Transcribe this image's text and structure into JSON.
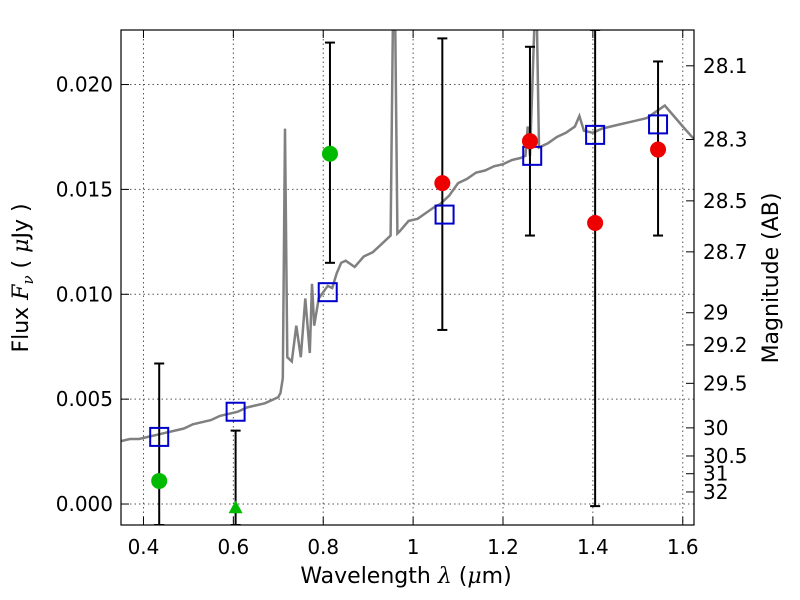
{
  "chart_data": {
    "type": "scatter",
    "title": "",
    "xlabel": "Wavelength  λ (μm)",
    "ylabel": "Flux  F_ν  ( μJy )",
    "y2label": "Magnitude (AB)",
    "xlabel_parts": {
      "pre": "Wavelength  ",
      "sym": "λ",
      "post": " (",
      "unit": "μ",
      "tail": "m)"
    },
    "ylabel_parts": {
      "pre": "Flux  ",
      "sym": "F",
      "sub": "ν",
      "post": "  ( ",
      "unit": "μ",
      "tail": "Jy )"
    },
    "xlim": [
      0.35,
      1.625
    ],
    "ylim": [
      -0.001,
      0.0226
    ],
    "grid": true,
    "x_ticks": [
      {
        "value": 0.4,
        "label": "0.4"
      },
      {
        "value": 0.6,
        "label": "0.6"
      },
      {
        "value": 0.8,
        "label": "0.8"
      },
      {
        "value": 1.0,
        "label": "1"
      },
      {
        "value": 1.2,
        "label": "1.2"
      },
      {
        "value": 1.4,
        "label": "1.4"
      },
      {
        "value": 1.6,
        "label": "1.6"
      }
    ],
    "y_ticks": [
      {
        "value": 0.0,
        "label": "0.000"
      },
      {
        "value": 0.005,
        "label": "0.005"
      },
      {
        "value": 0.01,
        "label": "0.010"
      },
      {
        "value": 0.015,
        "label": "0.015"
      },
      {
        "value": 0.02,
        "label": "0.020"
      }
    ],
    "y2_ticks": [
      {
        "value": 28.1,
        "label": "28.1"
      },
      {
        "value": 28.3,
        "label": "28.3"
      },
      {
        "value": 28.5,
        "label": "28.5"
      },
      {
        "value": 28.7,
        "label": "28.7"
      },
      {
        "value": 29,
        "label": "29"
      },
      {
        "value": 29.2,
        "label": "29.2"
      },
      {
        "value": 29.5,
        "label": "29.5"
      },
      {
        "value": 30,
        "label": "30"
      },
      {
        "value": 30.5,
        "label": "30.5"
      },
      {
        "value": 31,
        "label": "31"
      },
      {
        "value": 32,
        "label": "32"
      }
    ],
    "series": [
      {
        "kind": "model-spectrum",
        "color": "#808080",
        "x": [
          0.35,
          0.37,
          0.39,
          0.41,
          0.43,
          0.45,
          0.47,
          0.49,
          0.51,
          0.53,
          0.55,
          0.57,
          0.59,
          0.61,
          0.63,
          0.65,
          0.67,
          0.69,
          0.7,
          0.705,
          0.71,
          0.715,
          0.72,
          0.725,
          0.73,
          0.74,
          0.75,
          0.76,
          0.77,
          0.775,
          0.78,
          0.79,
          0.8,
          0.81,
          0.82,
          0.83,
          0.84,
          0.85,
          0.87,
          0.89,
          0.91,
          0.93,
          0.95,
          0.955,
          0.96,
          0.965,
          0.97,
          0.99,
          1.01,
          1.03,
          1.05,
          1.06,
          1.07,
          1.08,
          1.09,
          1.1,
          1.12,
          1.14,
          1.16,
          1.18,
          1.2,
          1.22,
          1.24,
          1.25,
          1.255,
          1.26,
          1.27,
          1.275,
          1.28,
          1.3,
          1.32,
          1.34,
          1.36,
          1.37,
          1.38,
          1.4,
          1.42,
          1.44,
          1.46,
          1.48,
          1.5,
          1.52,
          1.54,
          1.56,
          1.58,
          1.6,
          1.625
        ],
        "y": [
          0.003,
          0.0031,
          0.0031,
          0.0032,
          0.0033,
          0.0034,
          0.0035,
          0.0036,
          0.0038,
          0.0039,
          0.004,
          0.0042,
          0.0043,
          0.0044,
          0.0046,
          0.0047,
          0.0048,
          0.005,
          0.0051,
          0.0053,
          0.006,
          0.0179,
          0.007,
          0.0069,
          0.0068,
          0.0085,
          0.007,
          0.0098,
          0.0072,
          0.0105,
          0.0085,
          0.0098,
          0.0101,
          0.0104,
          0.0103,
          0.011,
          0.0115,
          0.0116,
          0.0113,
          0.0118,
          0.012,
          0.0124,
          0.0128,
          0.023,
          0.0235,
          0.0129,
          0.013,
          0.0135,
          0.0136,
          0.0139,
          0.0142,
          0.0143,
          0.0145,
          0.0147,
          0.015,
          0.0153,
          0.0155,
          0.0158,
          0.0159,
          0.0161,
          0.0162,
          0.0164,
          0.0165,
          0.0166,
          0.018,
          0.0166,
          0.023,
          0.0235,
          0.017,
          0.0172,
          0.0175,
          0.0177,
          0.018,
          0.0185,
          0.0178,
          0.0177,
          0.0179,
          0.018,
          0.0181,
          0.0182,
          0.0183,
          0.0184,
          0.0187,
          0.019,
          0.0185,
          0.018,
          0.0174
        ]
      },
      {
        "kind": "model-points",
        "color": "#0000cc",
        "marker": "open-square",
        "x": [
          0.435,
          0.605,
          0.81,
          1.07,
          1.265,
          1.405,
          1.545
        ],
        "y": [
          0.0032,
          0.0044,
          0.0101,
          0.0138,
          0.0166,
          0.0176,
          0.0181
        ]
      },
      {
        "kind": "observed-high",
        "color": "#00bb00",
        "marker": "filled-circle",
        "x": [
          0.435,
          0.815
        ],
        "y": [
          0.0011,
          0.0167
        ]
      },
      {
        "kind": "observed-high-upperlimit",
        "color": "#00bb00",
        "marker": "filled-triangle",
        "x": [
          0.605
        ],
        "y": [
          -0.0002
        ]
      },
      {
        "kind": "observed",
        "color": "#ee0000",
        "marker": "filled-circle",
        "x": [
          1.065,
          1.26,
          1.405,
          1.545
        ],
        "y": [
          0.0153,
          0.0173,
          0.0134,
          0.0169
        ]
      }
    ],
    "error_bars": [
      {
        "x": 0.435,
        "ylow": -0.001,
        "yhigh": 0.0067
      },
      {
        "x": 0.605,
        "ylow": -0.001,
        "yhigh": 0.0035
      },
      {
        "x": 0.815,
        "ylow": 0.0115,
        "yhigh": 0.022
      },
      {
        "x": 1.065,
        "ylow": 0.0083,
        "yhigh": 0.0222
      },
      {
        "x": 1.26,
        "ylow": 0.0128,
        "yhigh": 0.0218
      },
      {
        "x": 1.405,
        "ylow": -0.0001,
        "yhigh": 0.0226
      },
      {
        "x": 1.545,
        "ylow": 0.0128,
        "yhigh": 0.0211
      }
    ]
  }
}
